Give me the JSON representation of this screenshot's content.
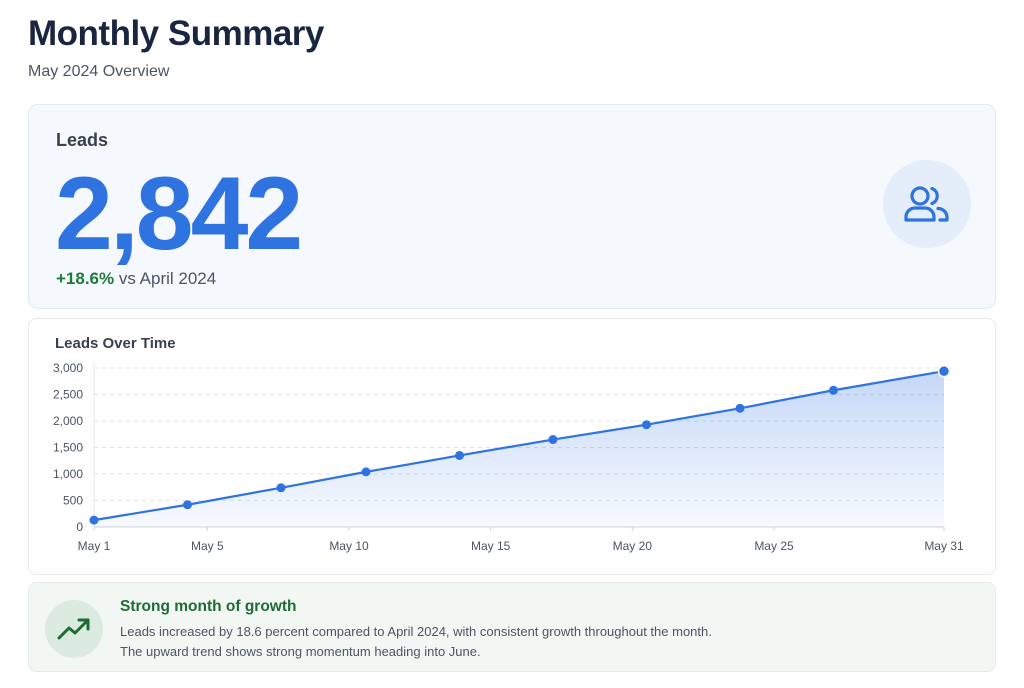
{
  "header": {
    "title": "Monthly Summary",
    "subtitle": "May 2024 Overview"
  },
  "kpi": {
    "label": "Leads",
    "value": "2,842",
    "change_pct": "+18.6%",
    "change_text": " vs April 2024",
    "icon": "users-icon",
    "accent_color": "#2f73e0",
    "positive_color": "#1f7a3a"
  },
  "chart": {
    "title": "Leads Over Time",
    "line_color": "#2f73e0"
  },
  "chart_data": {
    "type": "area",
    "title": "Leads Over Time",
    "xlabel": "",
    "ylabel": "",
    "x_tick_labels": [
      "May 1",
      "May 5",
      "May 10",
      "May 15",
      "May 20",
      "May 25",
      "May 31"
    ],
    "x_tick_days": [
      1,
      5,
      10,
      15,
      20,
      25,
      31
    ],
    "y_tick_labels": [
      "0",
      "500",
      "1,000",
      "1,500",
      "2,000",
      "2,500",
      "3,000"
    ],
    "y_ticks": [
      0,
      500,
      1000,
      1500,
      2000,
      2500,
      3000
    ],
    "xlim": [
      1,
      31
    ],
    "ylim": [
      0,
      3000
    ],
    "grid": true,
    "series": [
      {
        "x": [
          1,
          4.3,
          7.6,
          10.6,
          13.9,
          17.2,
          20.5,
          23.8,
          27.1,
          31
        ],
        "values": [
          130,
          420,
          740,
          1040,
          1350,
          1650,
          1930,
          2240,
          2580,
          2940
        ]
      }
    ]
  },
  "insight": {
    "title": "Strong month of growth",
    "line1": "Leads increased by 18.6 percent compared to April 2024, with consistent growth throughout the month.",
    "line2": "The upward trend shows strong momentum heading into June.",
    "icon": "trending-up-icon",
    "color": "#1f6b35"
  }
}
